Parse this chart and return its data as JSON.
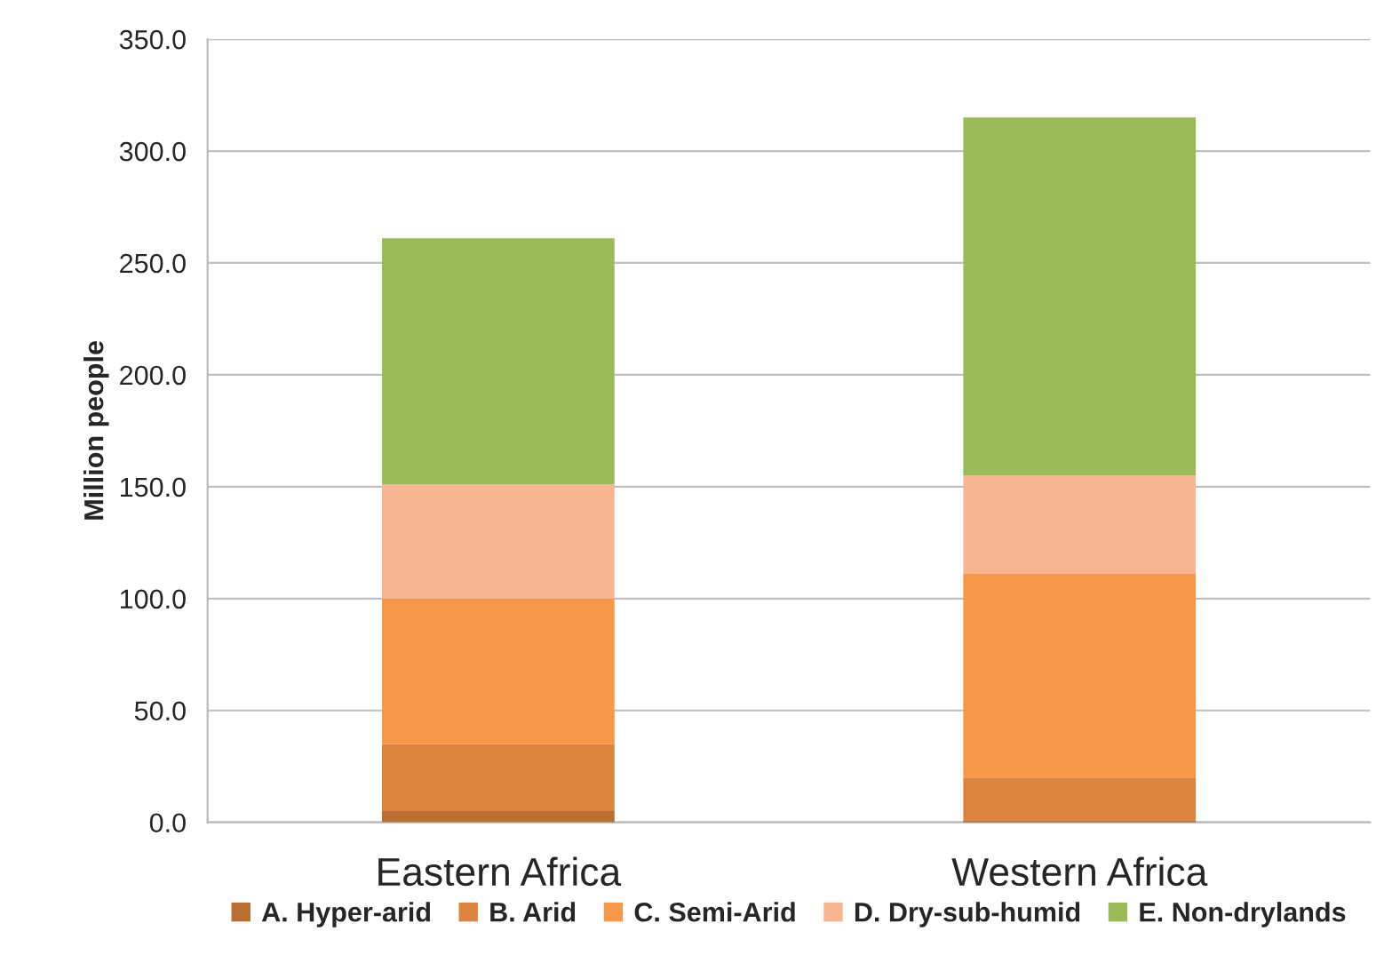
{
  "chart_data": {
    "type": "bar",
    "stacked": true,
    "ylabel": "Million people",
    "categories": [
      "Eastern Africa",
      "Western Africa"
    ],
    "series": [
      {
        "name": "A. Hyper-arid",
        "color": "#b96f32",
        "values": [
          5,
          1
        ]
      },
      {
        "name": "B. Arid",
        "color": "#dc843f",
        "values": [
          30,
          19
        ]
      },
      {
        "name": "C. Semi-Arid",
        "color": "#f69749",
        "values": [
          65,
          91
        ]
      },
      {
        "name": "D. Dry-sub-humid",
        "color": "#f8b592",
        "values": [
          51,
          44
        ]
      },
      {
        "name": "E. Non-drylands",
        "color": "#9bbb59",
        "values": [
          110,
          160
        ]
      }
    ],
    "ylim": [
      0,
      350
    ],
    "yticks": [
      {
        "value": 0,
        "label": "0.0"
      },
      {
        "value": 50,
        "label": "50.0"
      },
      {
        "value": 100,
        "label": "100.0"
      },
      {
        "value": 150,
        "label": "150.0"
      },
      {
        "value": 200,
        "label": "200.0"
      },
      {
        "value": 250,
        "label": "250.0"
      },
      {
        "value": 300,
        "label": "300.0"
      },
      {
        "value": 350,
        "label": "350.0"
      }
    ],
    "grid": "y",
    "legend": "bottom"
  }
}
